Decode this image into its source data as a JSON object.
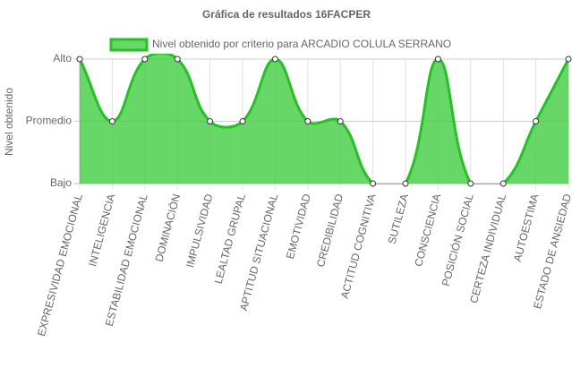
{
  "chart_data": {
    "type": "area",
    "title": "Gráfica de resultados 16FACPER",
    "y_label": "Nivel obtenido",
    "categories": [
      "EXPRESIVIDAD EMOCIONAL",
      "INTELIGENCIA",
      "ESTABILIDAD EMOCIONAL",
      "DOMINACIÓN",
      "IMPULSIVIDAD",
      "LEALTAD GRUPAL",
      "APTITUD SITUACIONAL",
      "EMOTIVIDAD",
      "CREDIBILIDAD",
      "ACTITUD COGNITIVA",
      "SUTILEZA",
      "CONSCIENCIA",
      "POSICIÓN SOCIAL",
      "CERTEZA INDIVIDUAL",
      "AUTOESTIMA",
      "ESTADO DE ANSIEDAD"
    ],
    "series": [
      {
        "name": "Nivel obtenido por criterio para ARCADIO COLULA SERRANO",
        "color": "#22c322",
        "fill_color": "rgba(60,205,60,0.78)",
        "values": [
          3,
          2,
          3,
          3,
          2,
          2,
          3,
          2,
          2,
          1,
          1,
          3,
          1,
          1,
          2,
          3
        ]
      }
    ],
    "ylim": [
      1,
      3
    ],
    "yticks": [
      {
        "value": 1,
        "label": "Bajo"
      },
      {
        "value": 2,
        "label": "Promedio"
      },
      {
        "value": 3,
        "label": "Alto"
      }
    ],
    "grid": true
  }
}
